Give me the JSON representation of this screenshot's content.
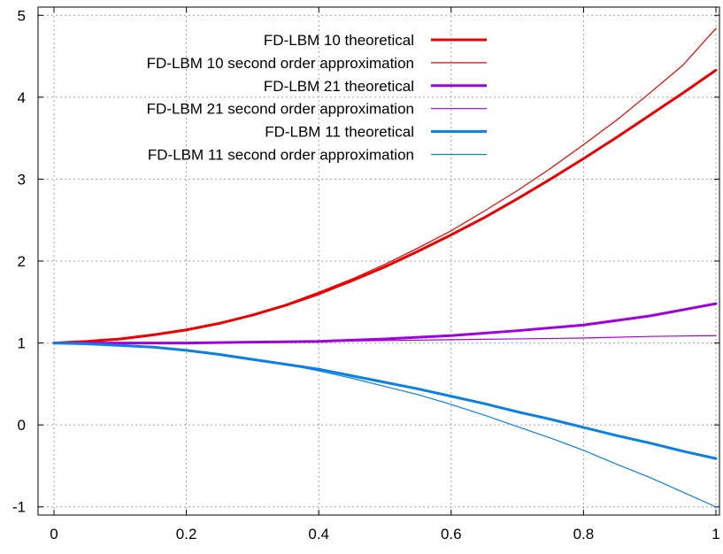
{
  "chart_data": {
    "type": "line",
    "title": "",
    "xlabel": "",
    "ylabel": "",
    "xlim": [
      0,
      1
    ],
    "ylim": [
      -1.1,
      5.1
    ],
    "x_ticks": [
      0,
      0.2,
      0.4,
      0.6,
      0.8,
      1
    ],
    "x_tick_labels": [
      "0",
      "0.2",
      "0.4",
      "0.6",
      "0.8",
      "1"
    ],
    "y_ticks": [
      -1,
      0,
      1,
      2,
      3,
      4,
      5
    ],
    "y_tick_labels": [
      "-1",
      "0",
      "1",
      "2",
      "3",
      "4",
      "5"
    ],
    "grid": true,
    "legend_position": "top-left",
    "series": [
      {
        "name": "FD-LBM 10 theoretical",
        "color": "#ee0000",
        "style": "thick",
        "x": [
          0,
          0.05,
          0.1,
          0.15,
          0.2,
          0.25,
          0.3,
          0.35,
          0.4,
          0.45,
          0.5,
          0.55,
          0.6,
          0.65,
          0.7,
          0.75,
          0.8,
          0.85,
          0.9,
          0.95,
          1.0
        ],
        "y": [
          1.0,
          1.02,
          1.05,
          1.1,
          1.16,
          1.24,
          1.34,
          1.46,
          1.6,
          1.76,
          1.93,
          2.12,
          2.32,
          2.53,
          2.76,
          3.0,
          3.25,
          3.51,
          3.78,
          4.05,
          4.33
        ]
      },
      {
        "name": "FD-LBM 10 second order approximation",
        "color": "#ee0000",
        "style": "thin",
        "x": [
          0,
          0.05,
          0.1,
          0.15,
          0.2,
          0.25,
          0.3,
          0.35,
          0.4,
          0.45,
          0.5,
          0.55,
          0.6,
          0.65,
          0.7,
          0.75,
          0.8,
          0.85,
          0.9,
          0.95,
          1.0
        ],
        "y": [
          1.0,
          1.01,
          1.04,
          1.09,
          1.15,
          1.24,
          1.35,
          1.47,
          1.62,
          1.78,
          1.96,
          2.16,
          2.37,
          2.61,
          2.86,
          3.13,
          3.42,
          3.72,
          4.05,
          4.39,
          4.84
        ]
      },
      {
        "name": "FD-LBM 21 theoretical",
        "color": "#a000e0",
        "style": "thick",
        "x": [
          0,
          0.1,
          0.2,
          0.3,
          0.4,
          0.5,
          0.6,
          0.7,
          0.8,
          0.9,
          1.0
        ],
        "y": [
          1.0,
          1.0,
          1.0,
          1.01,
          1.02,
          1.05,
          1.09,
          1.15,
          1.22,
          1.33,
          1.48
        ]
      },
      {
        "name": "FD-LBM 21 second order approximation",
        "color": "#a000e0",
        "style": "thin",
        "x": [
          0,
          0.1,
          0.2,
          0.3,
          0.4,
          0.5,
          0.6,
          0.7,
          0.8,
          0.9,
          1.0
        ],
        "y": [
          1.0,
          1.0,
          1.0,
          1.01,
          1.02,
          1.03,
          1.04,
          1.05,
          1.06,
          1.08,
          1.09
        ]
      },
      {
        "name": "FD-LBM 11 theoretical",
        "color": "#0a7fe6",
        "style": "thick",
        "x": [
          0,
          0.05,
          0.1,
          0.15,
          0.2,
          0.25,
          0.3,
          0.35,
          0.4,
          0.45,
          0.5,
          0.55,
          0.6,
          0.65,
          0.7,
          0.75,
          0.8,
          0.85,
          0.9,
          0.95,
          1.0
        ],
        "y": [
          1.0,
          0.99,
          0.97,
          0.95,
          0.91,
          0.86,
          0.8,
          0.74,
          0.68,
          0.6,
          0.52,
          0.44,
          0.35,
          0.26,
          0.16,
          0.07,
          -0.03,
          -0.13,
          -0.22,
          -0.32,
          -0.41
        ]
      },
      {
        "name": "FD-LBM 11 second order approximation",
        "color": "#0a7fe6",
        "style": "thin",
        "x": [
          0,
          0.05,
          0.1,
          0.15,
          0.2,
          0.25,
          0.3,
          0.35,
          0.4,
          0.45,
          0.5,
          0.55,
          0.6,
          0.65,
          0.7,
          0.75,
          0.8,
          0.85,
          0.9,
          0.95,
          1.0
        ],
        "y": [
          1.0,
          0.99,
          0.98,
          0.95,
          0.91,
          0.86,
          0.8,
          0.74,
          0.66,
          0.57,
          0.47,
          0.37,
          0.25,
          0.12,
          -0.02,
          -0.16,
          -0.31,
          -0.48,
          -0.64,
          -0.82,
          -1.0
        ]
      }
    ]
  }
}
